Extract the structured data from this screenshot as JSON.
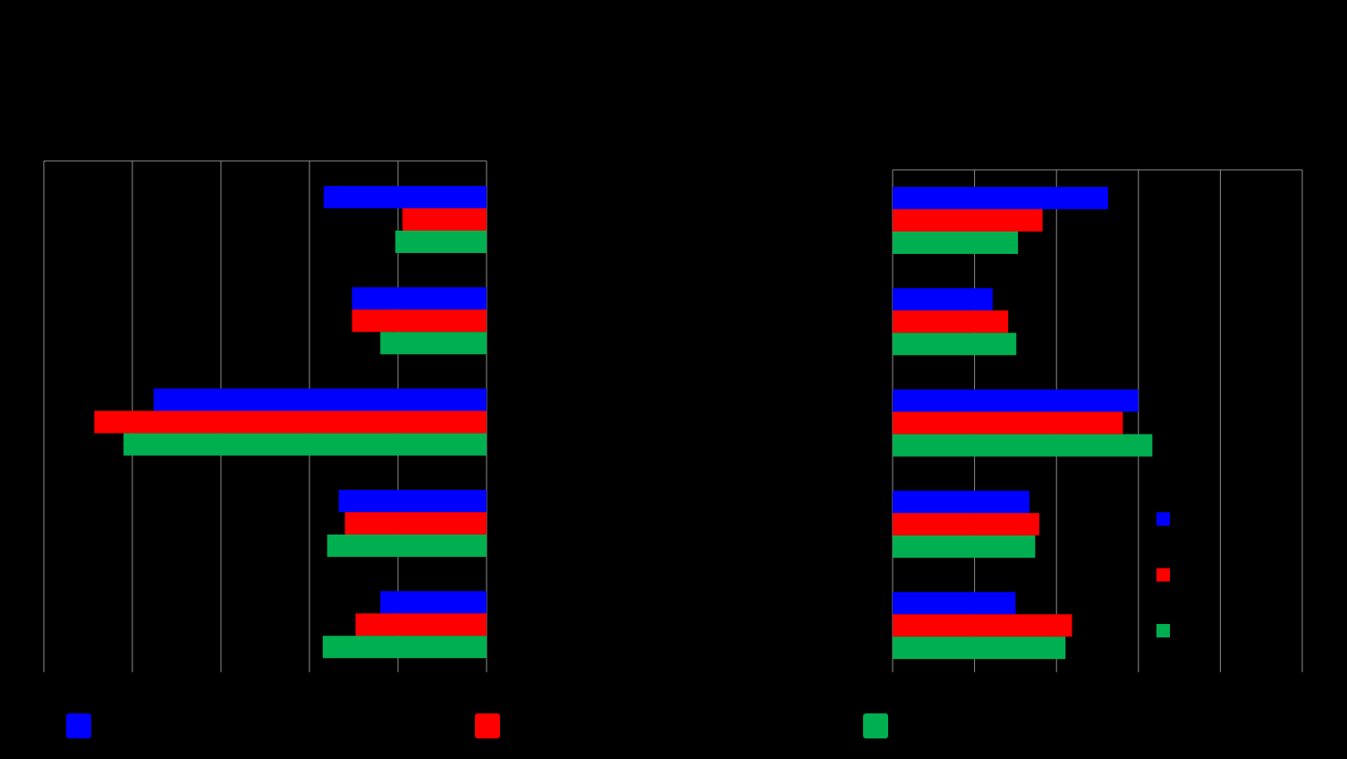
{
  "chart_data": [
    {
      "type": "bar",
      "orientation": "horizontal",
      "grid": true,
      "categories": [
        null,
        null,
        null,
        null,
        null
      ],
      "xlim": [
        5,
        0
      ],
      "xticks": [
        0,
        1,
        2,
        3,
        4,
        5
      ],
      "series": [
        {
          "color": "#0000ff",
          "values": [
            1.84,
            1.52,
            3.76,
            1.67,
            1.2
          ]
        },
        {
          "color": "#ff0000",
          "values": [
            0.95,
            1.52,
            4.43,
            1.6,
            1.48
          ]
        },
        {
          "color": "#00b050",
          "values": [
            1.03,
            1.2,
            4.1,
            1.8,
            1.85
          ]
        }
      ]
    },
    {
      "type": "bar",
      "orientation": "horizontal",
      "grid": true,
      "categories": [
        null,
        null,
        null,
        null,
        null
      ],
      "xlim": [
        0,
        5
      ],
      "xticks": [
        0,
        1,
        2,
        3,
        4,
        5
      ],
      "series": [
        {
          "color": "#0000ff",
          "values": [
            2.63,
            1.22,
            3.0,
            1.67,
            1.5
          ]
        },
        {
          "color": "#ff0000",
          "values": [
            1.83,
            1.41,
            2.81,
            1.79,
            2.19
          ]
        },
        {
          "color": "#00b050",
          "values": [
            1.53,
            1.51,
            3.17,
            1.74,
            2.11
          ]
        }
      ]
    }
  ]
}
